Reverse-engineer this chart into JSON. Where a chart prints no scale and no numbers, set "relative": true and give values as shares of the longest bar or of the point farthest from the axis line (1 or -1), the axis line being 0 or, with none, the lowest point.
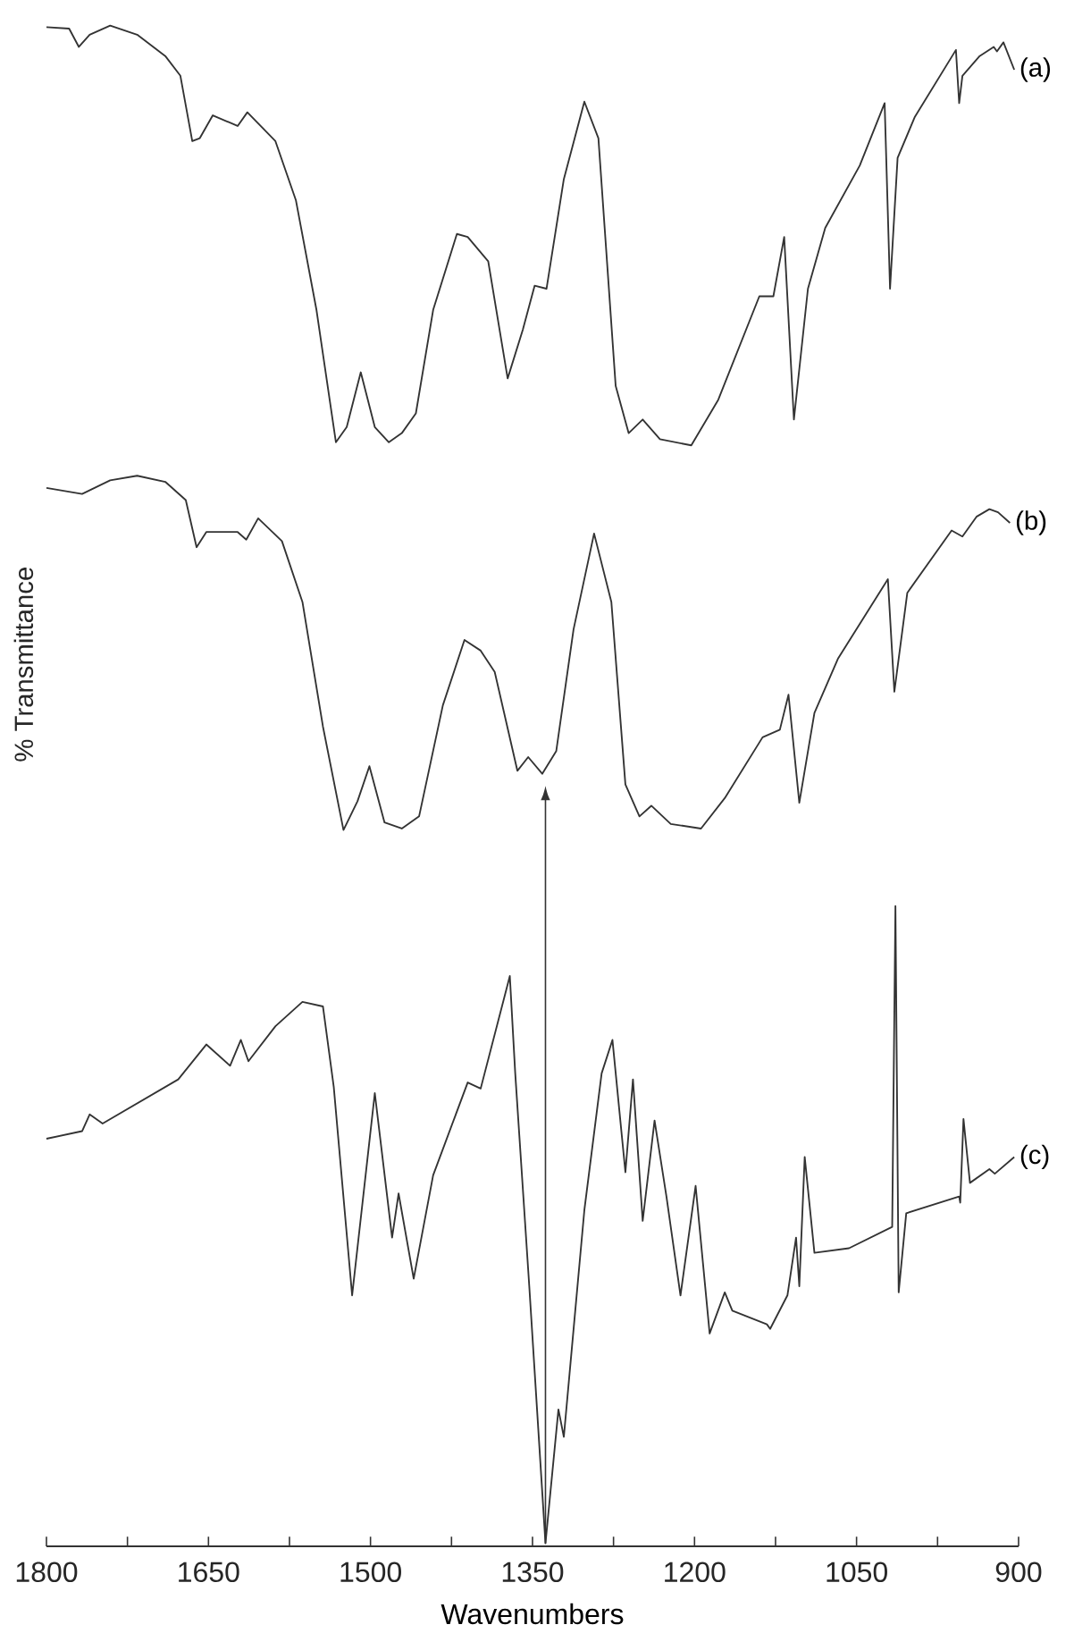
{
  "chart_data": {
    "type": "line",
    "relative": true,
    "xlabel": "Wavenumbers",
    "ylabel": "% Transmittance",
    "xlim": [
      1800,
      900
    ],
    "xticks": [
      1800,
      {
        "value": 1725,
        "label": null
      },
      1650,
      {
        "value": 1575,
        "label": null
      },
      1500,
      {
        "value": 1425,
        "label": null
      },
      1350,
      {
        "value": 1275,
        "label": null
      },
      1200,
      {
        "value": 1125,
        "label": null
      },
      1050,
      {
        "value": 975,
        "label": null
      },
      900
    ],
    "grid": false,
    "legend": false,
    "marker": "none",
    "line_style": "solid",
    "series": [
      {
        "name": "(a)",
        "color": "#333333",
        "x": [
          1800,
          1779,
          1770,
          1760,
          1741,
          1716,
          1690,
          1676,
          1665,
          1658,
          1646,
          1623,
          1614,
          1588,
          1569,
          1550,
          1532,
          1522,
          1509,
          1496,
          1483,
          1471,
          1458,
          1442,
          1420,
          1410,
          1391,
          1373,
          1359,
          1348,
          1337,
          1321,
          1302,
          1289,
          1273,
          1261,
          1248,
          1232,
          1203,
          1178,
          1140,
          1127,
          1117,
          1108,
          1095,
          1079,
          1047,
          1024,
          1019,
          1012,
          996,
          958,
          955,
          952,
          936,
          923,
          920,
          914,
          904
        ],
        "values": [
          0.999,
          0.998,
          0.986,
          0.994,
          1.0,
          0.994,
          0.98,
          0.967,
          0.924,
          0.926,
          0.941,
          0.934,
          0.943,
          0.924,
          0.885,
          0.813,
          0.726,
          0.736,
          0.772,
          0.736,
          0.726,
          0.732,
          0.745,
          0.813,
          0.863,
          0.861,
          0.845,
          0.768,
          0.8,
          0.829,
          0.827,
          0.899,
          0.95,
          0.926,
          0.763,
          0.732,
          0.741,
          0.728,
          0.724,
          0.754,
          0.822,
          0.822,
          0.861,
          0.741,
          0.827,
          0.867,
          0.908,
          0.949,
          0.827,
          0.913,
          0.94,
          0.984,
          0.949,
          0.967,
          0.98,
          0.986,
          0.983,
          0.989,
          0.971
        ]
      },
      {
        "name": "(b)",
        "color": "#333333",
        "x": [
          1800,
          1767,
          1741,
          1716,
          1690,
          1671,
          1661,
          1652,
          1623,
          1615,
          1604,
          1582,
          1563,
          1544,
          1525,
          1512,
          1501,
          1487,
          1471,
          1455,
          1433,
          1413,
          1398,
          1385,
          1364,
          1354,
          1341,
          1328,
          1312,
          1293,
          1277,
          1264,
          1251,
          1240,
          1222,
          1194,
          1172,
          1137,
          1121,
          1113,
          1103,
          1089,
          1067,
          1021,
          1015,
          1003,
          962,
          952,
          939,
          927,
          919,
          908
        ],
        "values": [
          0.696,
          0.692,
          0.701,
          0.704,
          0.7,
          0.688,
          0.657,
          0.667,
          0.667,
          0.662,
          0.676,
          0.661,
          0.621,
          0.539,
          0.471,
          0.49,
          0.513,
          0.476,
          0.472,
          0.48,
          0.553,
          0.596,
          0.589,
          0.575,
          0.51,
          0.519,
          0.508,
          0.523,
          0.603,
          0.666,
          0.621,
          0.501,
          0.48,
          0.487,
          0.475,
          0.472,
          0.492,
          0.532,
          0.537,
          0.56,
          0.489,
          0.548,
          0.584,
          0.636,
          0.562,
          0.627,
          0.668,
          0.664,
          0.677,
          0.682,
          0.68,
          0.673
        ]
      },
      {
        "name": "(c)",
        "color": "#333333",
        "x": [
          1800,
          1767,
          1760,
          1748,
          1678,
          1652,
          1630,
          1620,
          1613,
          1588,
          1563,
          1544,
          1534,
          1517,
          1496,
          1480,
          1474,
          1460,
          1442,
          1410,
          1398,
          1371,
          1366,
          1353,
          1338,
          1326,
          1321,
          1302,
          1286,
          1276,
          1264,
          1257,
          1248,
          1237,
          1226,
          1213,
          1199,
          1186,
          1172,
          1165,
          1133,
          1130,
          1114,
          1106,
          1103,
          1098,
          1089,
          1057,
          1017,
          1014,
          1011,
          1004,
          955,
          954,
          951,
          945,
          927,
          922,
          904
        ],
        "values": [
          0.268,
          0.273,
          0.284,
          0.278,
          0.307,
          0.33,
          0.316,
          0.333,
          0.319,
          0.342,
          0.358,
          0.355,
          0.302,
          0.165,
          0.298,
          0.203,
          0.232,
          0.176,
          0.244,
          0.305,
          0.301,
          0.375,
          0.311,
          0.171,
          0.002,
          0.09,
          0.072,
          0.221,
          0.311,
          0.333,
          0.246,
          0.307,
          0.214,
          0.28,
          0.23,
          0.165,
          0.237,
          0.14,
          0.167,
          0.155,
          0.146,
          0.143,
          0.165,
          0.203,
          0.171,
          0.256,
          0.193,
          0.196,
          0.21,
          0.421,
          0.167,
          0.219,
          0.23,
          0.226,
          0.281,
          0.239,
          0.248,
          0.245,
          0.256
        ]
      }
    ]
  }
}
